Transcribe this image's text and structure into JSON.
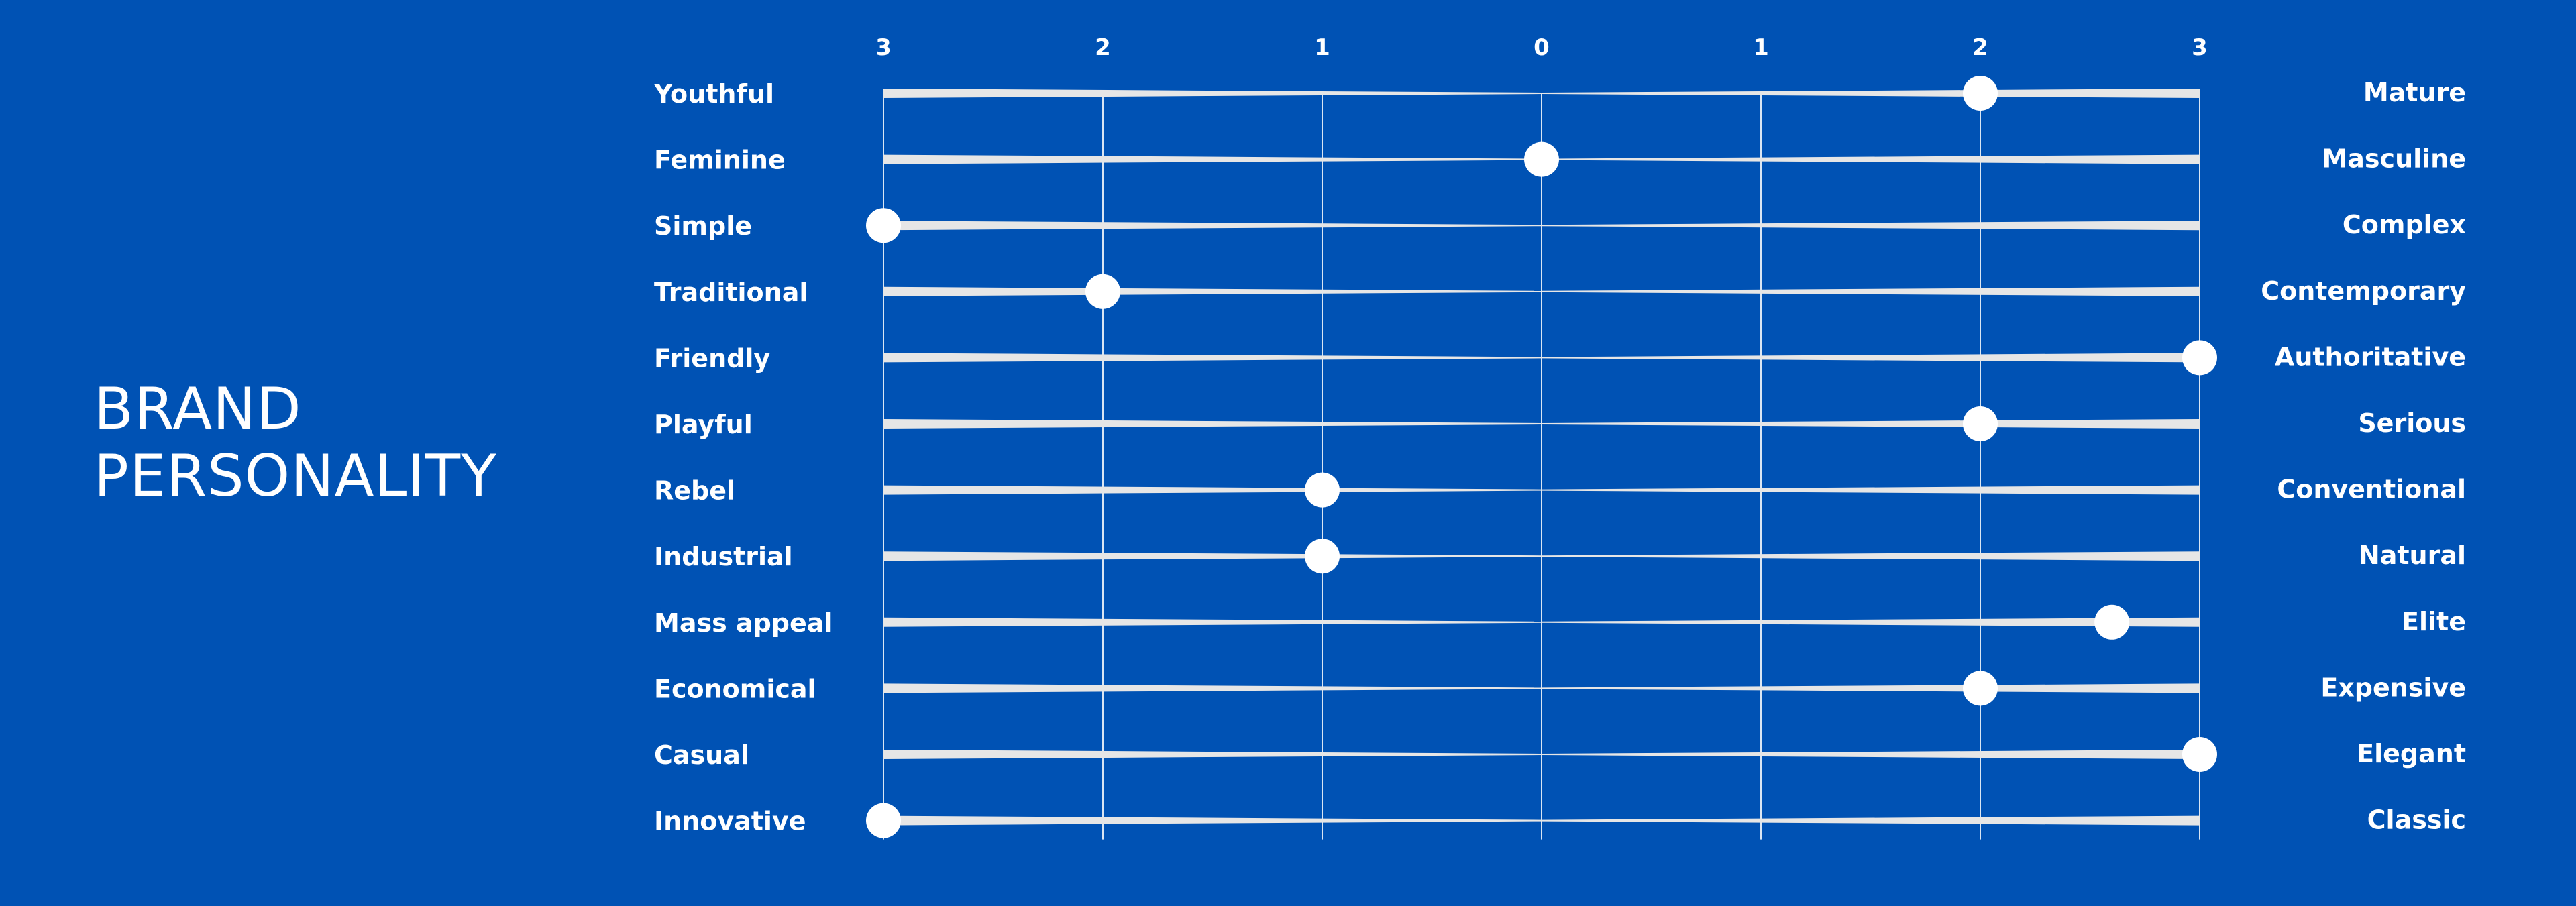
{
  "title_lines": [
    "BRAND",
    "PERSONALITY"
  ],
  "colors": {
    "background": "#0052b4",
    "bar": "#e6e6e6",
    "marker": "#ffffff",
    "grid": "#ffffff",
    "text": "#ffffff"
  },
  "chart_data": {
    "type": "scatter",
    "subtype": "semantic-differential",
    "x_ticks": [
      -3,
      -2,
      -1,
      0,
      1,
      2,
      3
    ],
    "x_tick_labels": [
      "3",
      "2",
      "1",
      "0",
      "1",
      "2",
      "3"
    ],
    "xlim": [
      -3,
      3
    ],
    "grid": true,
    "rows": [
      {
        "left": "Youthful",
        "right": "Mature",
        "value": 2
      },
      {
        "left": "Feminine",
        "right": "Masculine",
        "value": 0
      },
      {
        "left": "Simple",
        "right": "Complex",
        "value": -3
      },
      {
        "left": "Traditional",
        "right": "Contemporary",
        "value": -2
      },
      {
        "left": "Friendly",
        "right": "Authoritative",
        "value": 3
      },
      {
        "left": "Playful",
        "right": "Serious",
        "value": 2
      },
      {
        "left": "Rebel",
        "right": "Conventional",
        "value": -1
      },
      {
        "left": "Industrial",
        "right": "Natural",
        "value": -1
      },
      {
        "left": "Mass appeal",
        "right": "Elite",
        "value": 2.6
      },
      {
        "left": "Economical",
        "right": "Expensive",
        "value": 2
      },
      {
        "left": "Casual",
        "right": "Elegant",
        "value": 3
      },
      {
        "left": "Innovative",
        "right": "Classic",
        "value": -3
      }
    ]
  }
}
